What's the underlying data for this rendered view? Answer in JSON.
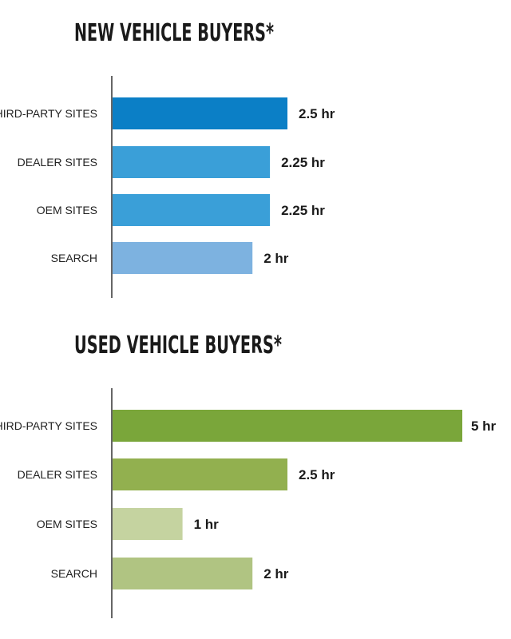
{
  "chart_data": [
    {
      "type": "bar",
      "orientation": "horizontal",
      "title": "NEW VEHICLE BUYERS*",
      "categories": [
        "THIRD-PARTY SITES",
        "DEALER SITES",
        "OEM SITES",
        "SEARCH"
      ],
      "values": [
        2.5,
        2.25,
        2.25,
        2
      ],
      "value_labels": [
        "2.5 hr",
        "2.25 hr",
        "2.25 hr",
        "2 hr"
      ],
      "unit": "hr",
      "xlim": [
        0,
        5
      ],
      "grid": false,
      "colors": [
        "#0b7fc6",
        "#3a9fd8",
        "#3a9fd8",
        "#7db2e0"
      ]
    },
    {
      "type": "bar",
      "orientation": "horizontal",
      "title": "USED VEHICLE BUYERS*",
      "categories": [
        "THIRD-PARTY SITES",
        "DEALER SITES",
        "OEM SITES",
        "SEARCH"
      ],
      "values": [
        5,
        2.5,
        1,
        2
      ],
      "value_labels": [
        "5 hr",
        "2.5 hr",
        "1 hr",
        "2 hr"
      ],
      "unit": "hr",
      "xlim": [
        0,
        5
      ],
      "grid": false,
      "colors": [
        "#7aa63a",
        "#92b04f",
        "#c5d3a0",
        "#b0c482"
      ]
    }
  ]
}
